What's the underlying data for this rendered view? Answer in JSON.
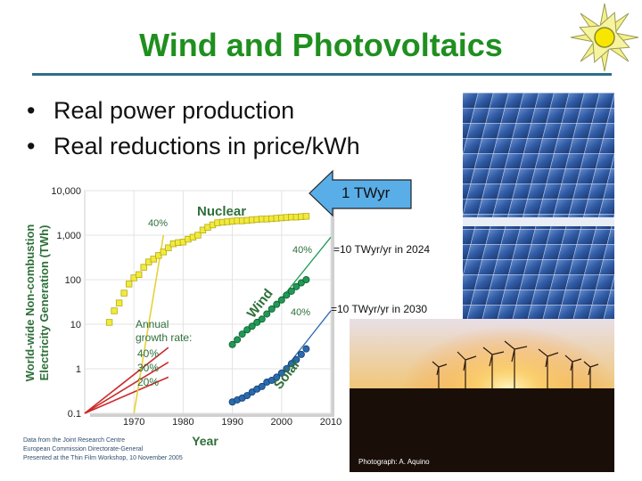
{
  "slide": {
    "title": "Wind and Photovoltaics",
    "bullets": [
      "Real power production",
      "Real reductions in price/kWh"
    ],
    "bullet_glyph": "•",
    "icons": [
      "sun-icon"
    ],
    "photo_credit": "Photograph: A. Aquino",
    "annotation_arrow": "1 TWyr",
    "callouts": [
      "=10 TWyr/yr in 2024",
      "=10 TWyr/yr in 2030"
    ],
    "colors": {
      "title": "#1f8f1f",
      "rule": "#2d6e88",
      "nuclear": "#f2ea3c",
      "wind": "#1f9a55",
      "solar": "#2a6bb0",
      "arrow": "#5aaee8"
    }
  },
  "chart_data": {
    "type": "scatter",
    "scale": "log",
    "ylabel": "World-wide Non-combustion Electricity Generation (TWh)",
    "xlabel": "Year",
    "xlim": [
      1960,
      2010
    ],
    "ylim": [
      0.1,
      10000
    ],
    "x_ticks": [
      "1970",
      "1980",
      "1990",
      "2000",
      "2010"
    ],
    "y_ticks": [
      "0.1",
      "1",
      "10",
      "100",
      "1,000",
      "10,000"
    ],
    "y_tick_values": [
      0.1,
      1,
      10,
      100,
      1000,
      10000
    ],
    "series": [
      {
        "name": "Nuclear",
        "x": [
          1965,
          1966,
          1967,
          1968,
          1969,
          1970,
          1971,
          1972,
          1973,
          1974,
          1975,
          1976,
          1977,
          1978,
          1979,
          1980,
          1981,
          1982,
          1983,
          1984,
          1985,
          1986,
          1987,
          1988,
          1989,
          1990,
          1991,
          1992,
          1993,
          1994,
          1995,
          1996,
          1997,
          1998,
          1999,
          2000,
          2001,
          2002,
          2003,
          2004,
          2005
        ],
        "y": [
          11,
          20,
          30,
          50,
          80,
          110,
          130,
          190,
          250,
          290,
          350,
          420,
          520,
          640,
          680,
          700,
          810,
          900,
          1000,
          1300,
          1500,
          1700,
          1900,
          1950,
          2000,
          2050,
          2100,
          2100,
          2150,
          2200,
          2250,
          2300,
          2300,
          2350,
          2400,
          2450,
          2500,
          2550,
          2550,
          2600,
          2650
        ]
      },
      {
        "name": "Wind",
        "x": [
          1990,
          1991,
          1992,
          1993,
          1994,
          1995,
          1996,
          1997,
          1998,
          1999,
          2000,
          2001,
          2002,
          2003,
          2004,
          2005
        ],
        "y": [
          3.5,
          4.5,
          6,
          7.5,
          9,
          11,
          13,
          17,
          22,
          28,
          35,
          45,
          55,
          70,
          85,
          100
        ]
      },
      {
        "name": "Solar",
        "x": [
          1990,
          1991,
          1992,
          1993,
          1994,
          1995,
          1996,
          1997,
          1998,
          1999,
          2000,
          2001,
          2002,
          2003,
          2004,
          2005
        ],
        "y": [
          0.18,
          0.2,
          0.22,
          0.25,
          0.3,
          0.35,
          0.4,
          0.5,
          0.55,
          0.65,
          0.8,
          1,
          1.3,
          1.6,
          2.1,
          2.8
        ]
      }
    ],
    "growth_rate": {
      "label_line1": "Annual",
      "label_line2": "growth rate:",
      "rates": [
        "40%",
        "30%",
        "20%"
      ]
    },
    "annotations": {
      "nuclear_rate": "40%",
      "wind_rate": "40%",
      "solar_rate": "40%"
    },
    "source_lines": [
      "Data from the Joint Research Centre",
      "European Commission Directorate-General",
      "Presented at the Thin Film Workshop, 10 November 2005"
    ]
  }
}
